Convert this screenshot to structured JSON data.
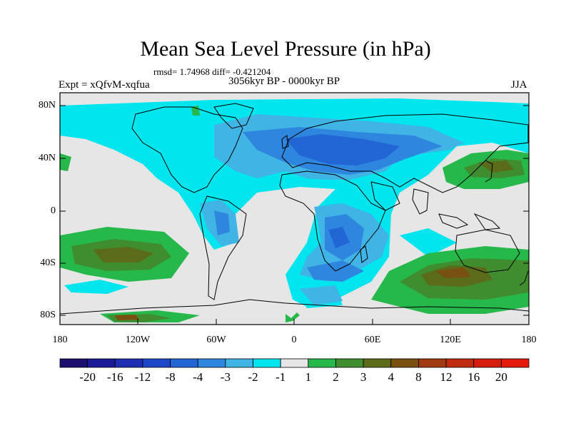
{
  "header": {
    "title": "Mean Sea Level Pressure (in hPa)",
    "stats": "rmsd= 1.74968 diff= -0.421204",
    "expt": "Expt = xQfvM-xqfua",
    "period": "3056kyr BP - 0000kyr BP",
    "season": "JJA"
  },
  "axes": {
    "lat_labels": [
      "80N",
      "40N",
      "0",
      "40S",
      "80S"
    ],
    "lon_labels": [
      "180",
      "120W",
      "60W",
      "0",
      "60E",
      "120E",
      "180"
    ]
  },
  "colorbar": {
    "labels": [
      "-20",
      "-16",
      "-12",
      "-8",
      "-4",
      "-3",
      "-2",
      "-1",
      "1",
      "2",
      "3",
      "4",
      "8",
      "12",
      "16",
      "20"
    ],
    "colors": [
      "#1a0f6e",
      "#1b1996",
      "#1e2fb4",
      "#1f48c8",
      "#2266d6",
      "#2f86df",
      "#40b4e4",
      "#00e5ee",
      "#e6e6e6",
      "#26b84a",
      "#3f8d2e",
      "#5a6b1a",
      "#7a4f12",
      "#a03a12",
      "#c02a10",
      "#d41d0e",
      "#e31a0c"
    ]
  },
  "palette": {
    "ocean_neutral": "#e6e6e6",
    "cyan": "#00e5ee",
    "light_blue": "#40b4e4",
    "mid_blue": "#2f86df",
    "dark_blue": "#2266d6",
    "green": "#26b84a",
    "dark_green": "#3f8d2e",
    "olive": "#5a6b1a",
    "brown": "#7a4f12",
    "coast": "#000000"
  }
}
